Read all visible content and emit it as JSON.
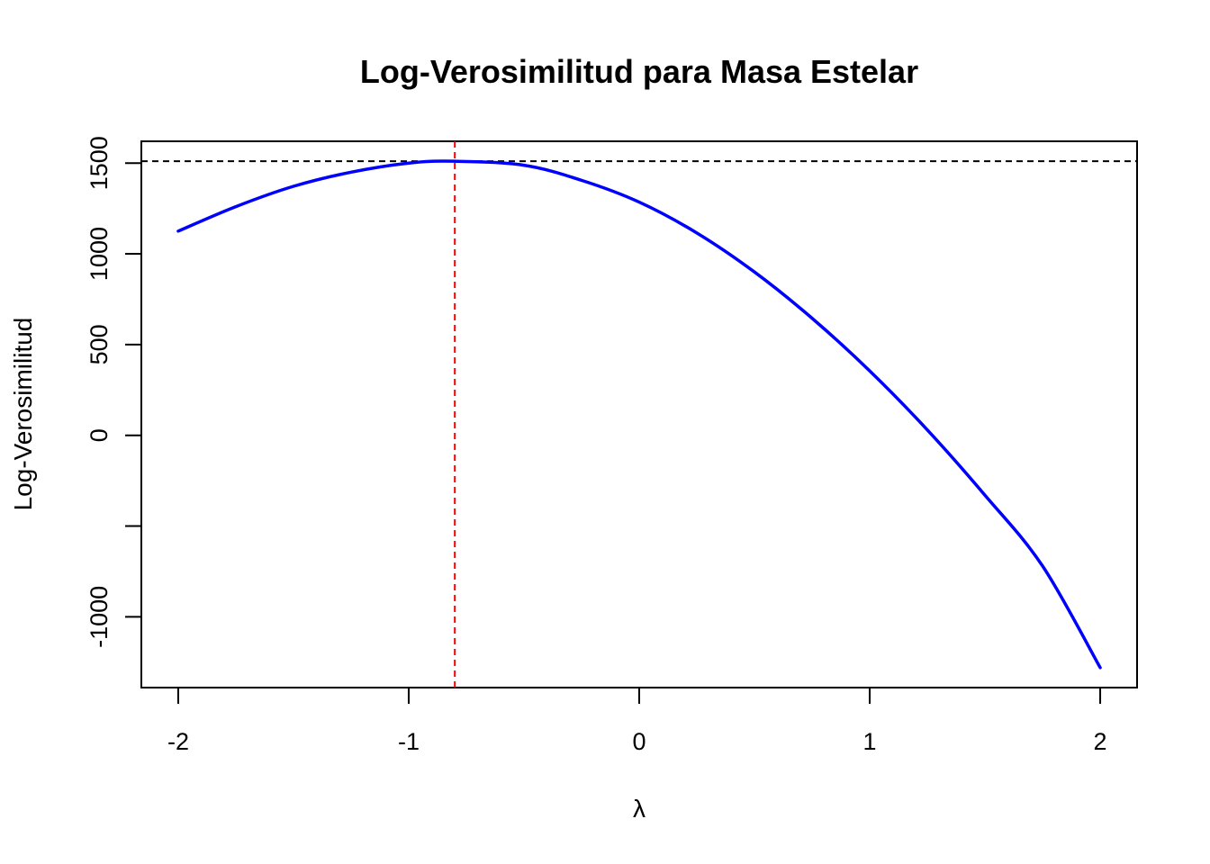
{
  "chart_data": {
    "type": "line",
    "title": "Log-Verosimilitud para Masa Estelar",
    "xlabel": "λ",
    "ylabel": "Log-Verosimilitud",
    "xlim": [
      -2.16,
      2.16
    ],
    "ylim": [
      -1390,
      1620
    ],
    "xticks": [
      -2,
      -1,
      0,
      1,
      2
    ],
    "xtick_labels": [
      "-2",
      "-1",
      "0",
      "1",
      "2"
    ],
    "yticks": [
      -1000,
      -500,
      0,
      500,
      1000,
      1500
    ],
    "ytick_labels": [
      "-1000",
      "",
      "0",
      "500",
      "1000",
      "1500"
    ],
    "grid": false,
    "series": [
      {
        "color": "#0000ff",
        "x": [
          -2.0,
          -1.75,
          -1.5,
          -1.25,
          -1.0,
          -0.8,
          -0.5,
          -0.25,
          0.0,
          0.25,
          0.5,
          0.75,
          1.0,
          1.25,
          1.5,
          1.75,
          2.0
        ],
        "y": [
          1125,
          1260,
          1372,
          1450,
          1500,
          1510,
          1488,
          1405,
          1285,
          1115,
          900,
          645,
          355,
          30,
          -330,
          -720,
          -1280
        ]
      }
    ],
    "reference_lines": [
      {
        "orientation": "horizontal",
        "value": 1510,
        "color": "#000000",
        "style": "dashed"
      },
      {
        "orientation": "vertical",
        "value": -0.8,
        "color": "#ff0000",
        "style": "dashed"
      }
    ]
  }
}
